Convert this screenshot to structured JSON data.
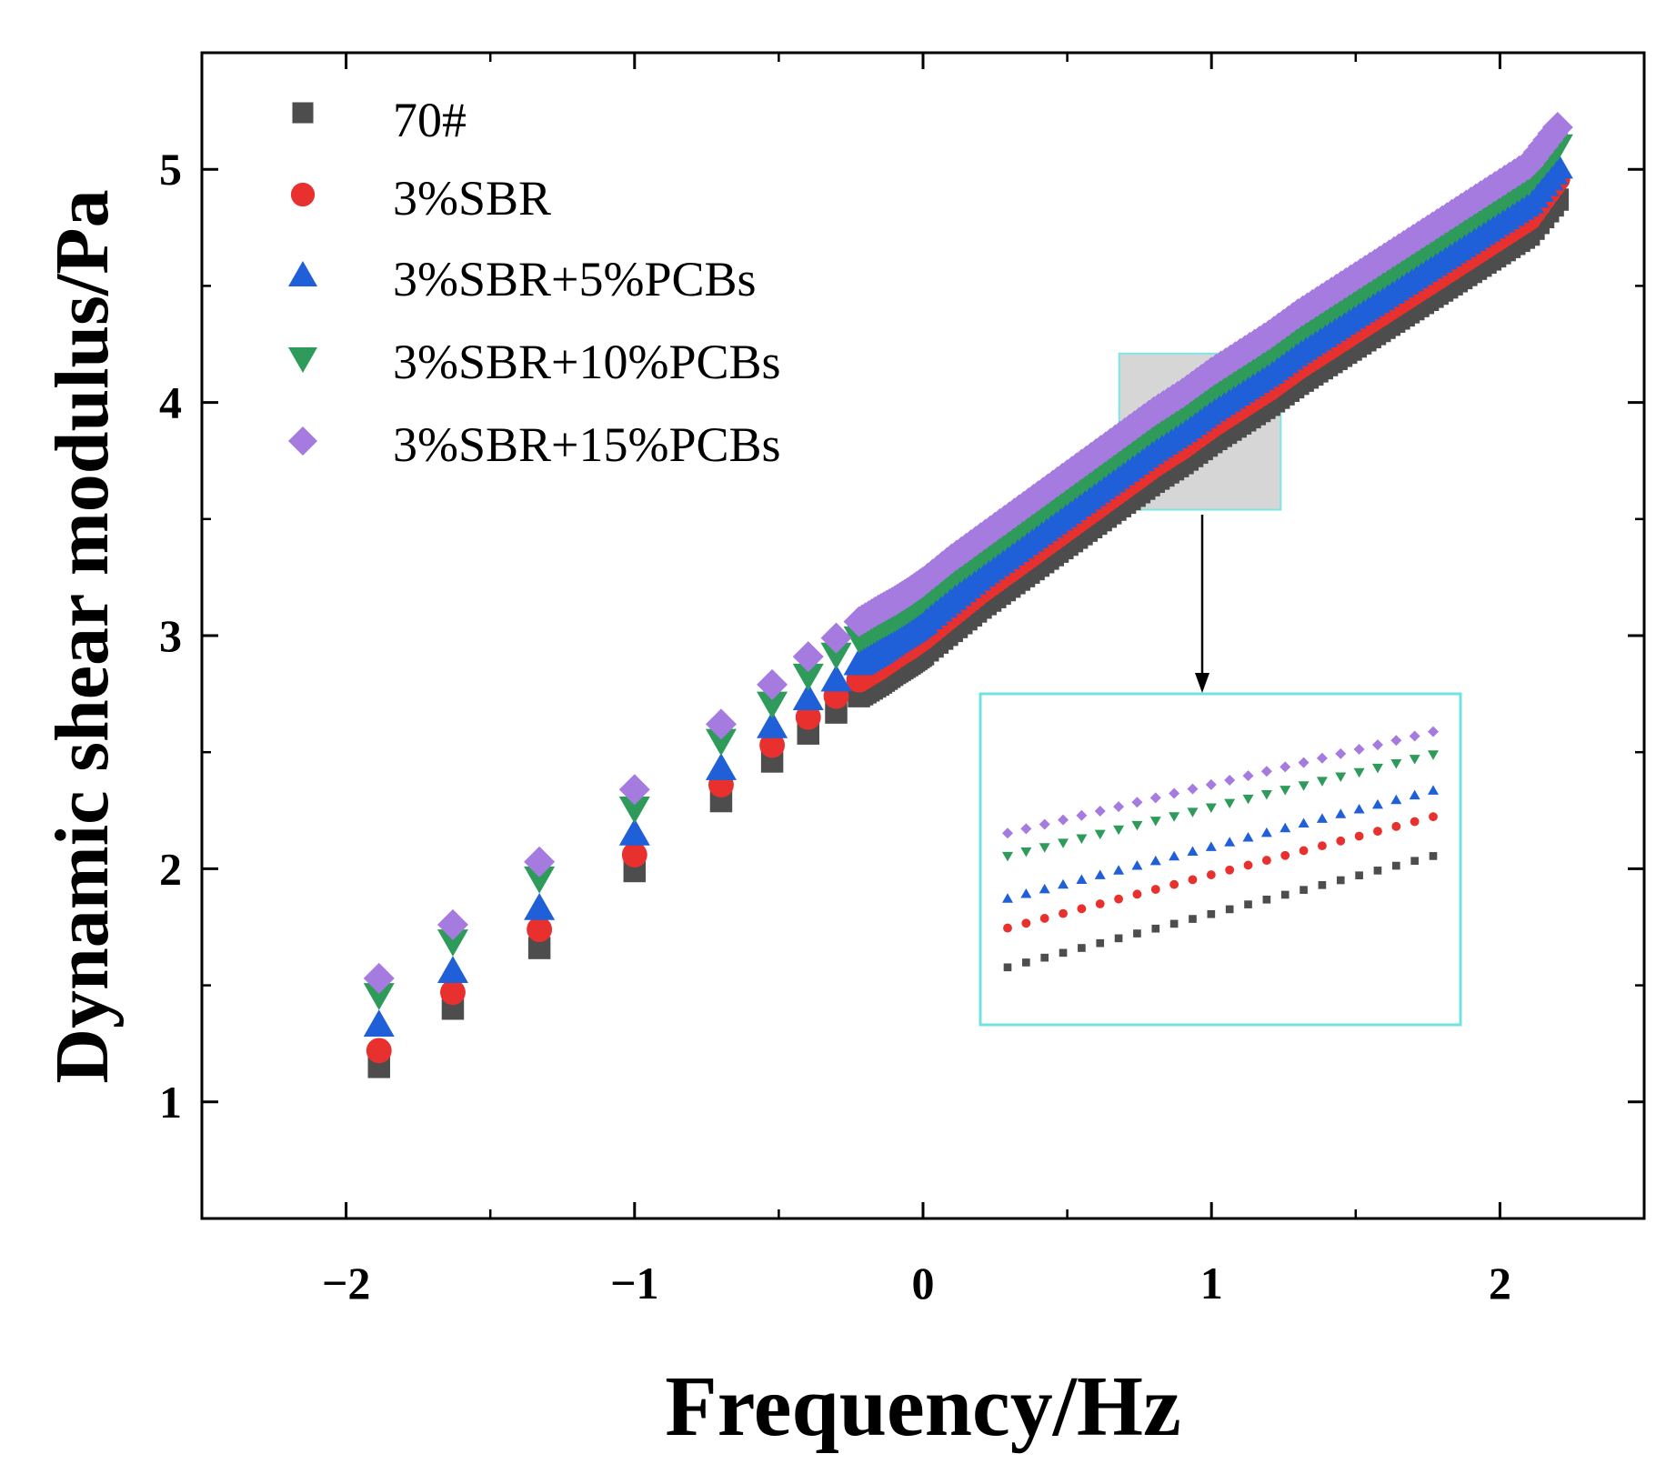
{
  "chart_data": {
    "type": "scatter",
    "title": "",
    "xlabel": "Frequency/Hz",
    "ylabel": "Dynamic shear modulus/Pa",
    "xlim": [
      -2.5,
      2.5
    ],
    "ylim": [
      0.5,
      5.5
    ],
    "xticks": [
      -2,
      -1,
      0,
      1,
      2
    ],
    "xtick_labels": [
      "−2",
      "−1",
      "0",
      "1",
      "2"
    ],
    "yticks": [
      1,
      2,
      3,
      4,
      5
    ],
    "ytick_labels": [
      "1",
      "2",
      "3",
      "4",
      "5"
    ],
    "legend_position": "top-left",
    "x": [
      -1.886,
      -1.63,
      -1.33,
      -1.0,
      -0.7,
      -0.523,
      -0.398,
      -0.301,
      -0.222,
      -0.155,
      -0.097,
      -0.046,
      0.0,
      0.1,
      0.2,
      0.3,
      0.4,
      0.5,
      0.6,
      0.7,
      0.8,
      0.9,
      1.0,
      1.1,
      1.2,
      1.3,
      1.4,
      1.5,
      1.6,
      1.7,
      1.8,
      1.9,
      2.0,
      2.1,
      2.2
    ],
    "series": [
      {
        "name": "70#",
        "marker": "square",
        "color": "#4d4d4d",
        "values": [
          1.15,
          1.4,
          1.66,
          1.99,
          2.29,
          2.46,
          2.58,
          2.67,
          2.74,
          2.79,
          2.84,
          2.88,
          2.92,
          3.02,
          3.12,
          3.21,
          3.3,
          3.39,
          3.48,
          3.57,
          3.66,
          3.74,
          3.83,
          3.91,
          3.99,
          4.08,
          4.16,
          4.24,
          4.32,
          4.4,
          4.48,
          4.56,
          4.64,
          4.72,
          4.87
        ]
      },
      {
        "name": "3%SBR",
        "marker": "circle",
        "color": "#e8302e",
        "values": [
          1.22,
          1.47,
          1.74,
          2.06,
          2.36,
          2.53,
          2.65,
          2.74,
          2.81,
          2.86,
          2.91,
          2.95,
          2.99,
          3.09,
          3.19,
          3.28,
          3.37,
          3.46,
          3.55,
          3.64,
          3.73,
          3.81,
          3.9,
          3.98,
          4.06,
          4.15,
          4.23,
          4.31,
          4.39,
          4.47,
          4.55,
          4.63,
          4.71,
          4.79,
          4.96
        ]
      },
      {
        "name": "3%SBR+5%PCBs",
        "marker": "triangle-up",
        "color": "#1f5fd8",
        "values": [
          1.33,
          1.56,
          1.83,
          2.15,
          2.43,
          2.61,
          2.73,
          2.81,
          2.88,
          2.93,
          2.98,
          3.02,
          3.06,
          3.16,
          3.26,
          3.35,
          3.44,
          3.53,
          3.62,
          3.71,
          3.8,
          3.88,
          3.97,
          4.05,
          4.13,
          4.22,
          4.3,
          4.38,
          4.46,
          4.54,
          4.62,
          4.7,
          4.78,
          4.86,
          5.01
        ]
      },
      {
        "name": "3%SBR+10%PCBs",
        "marker": "triangle-down",
        "color": "#2e9b5a",
        "values": [
          1.46,
          1.69,
          1.96,
          2.26,
          2.55,
          2.71,
          2.83,
          2.92,
          2.99,
          3.04,
          3.08,
          3.12,
          3.16,
          3.26,
          3.35,
          3.44,
          3.53,
          3.62,
          3.71,
          3.8,
          3.89,
          3.97,
          4.06,
          4.14,
          4.22,
          4.31,
          4.39,
          4.47,
          4.55,
          4.63,
          4.71,
          4.79,
          4.87,
          4.95,
          5.1
        ]
      },
      {
        "name": "3%SBR+15%PCBs",
        "marker": "diamond",
        "color": "#a57be0",
        "values": [
          1.53,
          1.76,
          2.03,
          2.34,
          2.62,
          2.79,
          2.91,
          2.99,
          3.06,
          3.11,
          3.15,
          3.19,
          3.23,
          3.33,
          3.42,
          3.51,
          3.6,
          3.69,
          3.78,
          3.87,
          3.96,
          4.04,
          4.13,
          4.21,
          4.29,
          4.38,
          4.46,
          4.54,
          4.62,
          4.7,
          4.78,
          4.86,
          4.94,
          5.02,
          5.18
        ]
      }
    ],
    "zoom_region": {
      "x_range": [
        0.68,
        1.24
      ],
      "y_range": [
        3.54,
        4.21
      ],
      "fill": "#d6d6d6",
      "border": "#7fe5e5"
    },
    "inset": {
      "border": "#6fe3e3",
      "points_per_series": 24
    }
  }
}
